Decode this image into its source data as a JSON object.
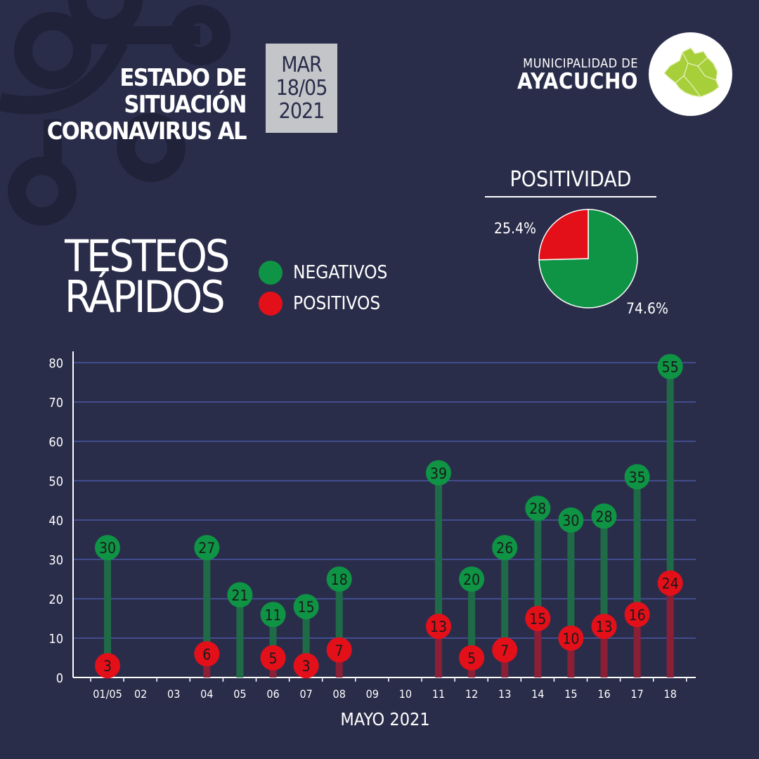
{
  "header": {
    "title_line1": "ESTADO DE SITUACIÓN",
    "title_line2": "CORONAVIRUS AL",
    "date_day": "MAR",
    "date_dm": "18/05",
    "date_year": "2021",
    "org_line1": "MUNICIPALIDAD DE",
    "org_line2": "AYACUCHO"
  },
  "positivity": {
    "title": "POSITIVIDAD",
    "positive_pct_label": "25.4%",
    "negative_pct_label": "74.6%"
  },
  "tests_title_line1": "TESTEOS",
  "tests_title_line2": "RÁPIDOS",
  "legend": [
    {
      "label": "NEGATIVOS",
      "color": "#0e9444"
    },
    {
      "label": "POSITIVOS",
      "color": "#e3101a"
    }
  ],
  "colors": {
    "background": "#2a2d4a",
    "negative": "#0e9444",
    "positive": "#e3101a",
    "negative_stem": "#1f6b47",
    "positive_stem": "#8a1f36",
    "grid": "#5a6ad0",
    "date_box": "#c4c5c9",
    "logo_green": "#a6cf39"
  },
  "chart_data": [
    {
      "type": "pie",
      "title": "POSITIVIDAD",
      "slices": [
        {
          "name": "POSITIVOS",
          "value": 25.4,
          "label": "25.4%"
        },
        {
          "name": "NEGATIVOS",
          "value": 74.6,
          "label": "74.6%"
        }
      ]
    },
    {
      "type": "bar",
      "xlabel": "MAYO 2021",
      "ylabel": "",
      "ylim": [
        0,
        80
      ],
      "yticks": [
        0,
        10,
        20,
        30,
        40,
        50,
        60,
        70,
        80
      ],
      "grid": true,
      "categories": [
        "01/05",
        "02",
        "03",
        "04",
        "05",
        "06",
        "07",
        "08",
        "09",
        "10",
        "11",
        "12",
        "13",
        "14",
        "15",
        "16",
        "17",
        "18"
      ],
      "stacked": true,
      "series": [
        {
          "name": "POSITIVOS",
          "values": [
            3,
            null,
            null,
            6,
            null,
            5,
            3,
            7,
            null,
            null,
            13,
            5,
            7,
            15,
            10,
            13,
            16,
            24
          ]
        },
        {
          "name": "NEGATIVOS",
          "values": [
            30,
            null,
            null,
            27,
            21,
            11,
            15,
            18,
            null,
            null,
            39,
            20,
            26,
            28,
            30,
            28,
            35,
            55
          ]
        }
      ]
    }
  ]
}
